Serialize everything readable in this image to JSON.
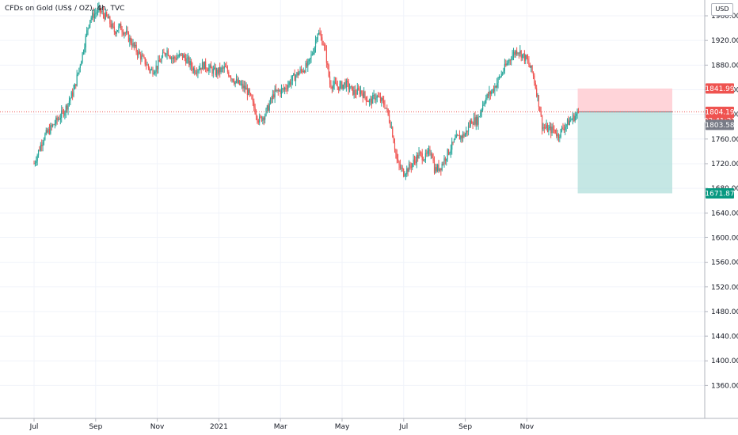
{
  "header": {
    "symbol_title": "CFDs on Gold (US$ / OZ), 4h, TVC",
    "currency_button": "USD"
  },
  "price_tags": {
    "stop_loss": "1841.99",
    "last_price": "1804.19",
    "countdown": "02:41:21",
    "crosshair_price": "1803.58",
    "take_profit": "1671.87"
  },
  "colors": {
    "up": "#26a69a",
    "down": "#ef5350",
    "stop_zone": "#ffcdd2",
    "profit_zone": "#b2dfdb",
    "stop_tag": "#ef5350",
    "profit_tag": "#089981",
    "crosshair_tag": "#787b86",
    "grid": "#f0f3fa"
  },
  "chart_data": {
    "type": "candlestick",
    "y_ticks": [
      "1960.00",
      "1920.00",
      "1880.00",
      "1840.00",
      "1800.00",
      "1760.00",
      "1720.00",
      "1680.00",
      "1640.00",
      "1600.00",
      "1560.00",
      "1520.00",
      "1480.00",
      "1440.00",
      "1400.00",
      "1360.00"
    ],
    "x_ticks": [
      "Jul",
      "Sep",
      "Nov",
      "2021",
      "Mar",
      "May",
      "Jul",
      "Sep",
      "Nov"
    ],
    "ylim": [
      1320,
      1975
    ],
    "grid": true,
    "path_points": [
      [
        0,
        1720
      ],
      [
        0.3,
        1762
      ],
      [
        0.6,
        1781
      ],
      [
        1.0,
        1807
      ],
      [
        1.3,
        1840
      ],
      [
        1.6,
        1905
      ],
      [
        1.8,
        1955
      ],
      [
        2.1,
        1970
      ],
      [
        2.4,
        1955
      ],
      [
        2.6,
        1935
      ],
      [
        2.8,
        1942
      ],
      [
        3.0,
        1930
      ],
      [
        3.3,
        1905
      ],
      [
        3.6,
        1885
      ],
      [
        3.8,
        1870
      ],
      [
        4.0,
        1878
      ],
      [
        4.3,
        1905
      ],
      [
        4.5,
        1890
      ],
      [
        4.8,
        1896
      ],
      [
        5.0,
        1886
      ],
      [
        5.2,
        1872
      ],
      [
        5.5,
        1880
      ],
      [
        5.9,
        1868
      ],
      [
        6.2,
        1875
      ],
      [
        6.5,
        1855
      ],
      [
        6.9,
        1840
      ],
      [
        7.0,
        1830
      ],
      [
        7.3,
        1790
      ],
      [
        7.5,
        1800
      ],
      [
        7.8,
        1835
      ],
      [
        8.1,
        1840
      ],
      [
        8.4,
        1858
      ],
      [
        8.6,
        1868
      ],
      [
        8.9,
        1880
      ],
      [
        9.1,
        1910
      ],
      [
        9.2,
        1935
      ],
      [
        9.4,
        1915
      ],
      [
        9.5,
        1888
      ],
      [
        9.6,
        1850
      ],
      [
        9.9,
        1845
      ],
      [
        10.1,
        1850
      ],
      [
        10.4,
        1835
      ],
      [
        10.6,
        1838
      ],
      [
        10.9,
        1820
      ],
      [
        11.1,
        1830
      ],
      [
        11.4,
        1815
      ],
      [
        11.6,
        1780
      ],
      [
        11.8,
        1720
      ],
      [
        12.0,
        1705
      ],
      [
        12.2,
        1715
      ],
      [
        12.5,
        1735
      ],
      [
        12.7,
        1730
      ],
      [
        12.9,
        1742
      ],
      [
        13.0,
        1710
      ],
      [
        13.2,
        1715
      ],
      [
        13.4,
        1735
      ],
      [
        13.7,
        1760
      ],
      [
        14.0,
        1768
      ],
      [
        14.2,
        1790
      ],
      [
        14.4,
        1790
      ],
      [
        14.6,
        1822
      ],
      [
        14.9,
        1840
      ],
      [
        15.2,
        1868
      ],
      [
        15.5,
        1895
      ],
      [
        15.7,
        1905
      ],
      [
        16.0,
        1888
      ],
      [
        16.2,
        1865
      ],
      [
        16.4,
        1815
      ],
      [
        16.5,
        1780
      ],
      [
        16.7,
        1775
      ],
      [
        16.9,
        1775
      ],
      [
        17.0,
        1765
      ],
      [
        17.2,
        1780
      ],
      [
        17.4,
        1790
      ],
      [
        17.7,
        1804
      ]
    ],
    "position": {
      "entry": 1804.19,
      "stop_loss": 1841.99,
      "take_profit": 1671.87,
      "start_month": 17.65,
      "end_month": 20.72
    }
  }
}
